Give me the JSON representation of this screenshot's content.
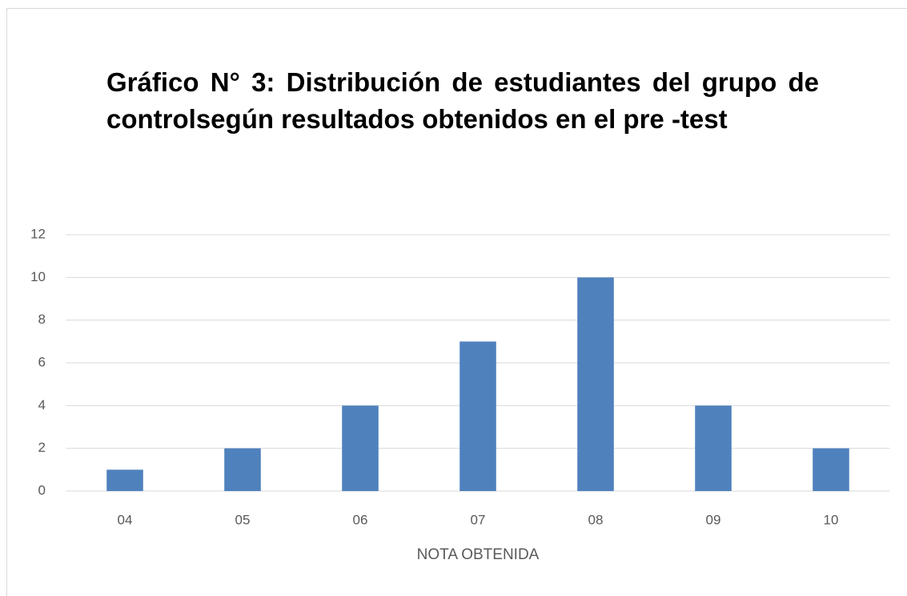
{
  "chart_data": {
    "type": "bar",
    "title": "Gráfico N° 3: Distribución de estudiantes del grupo de controlsegún resultados obtenidos en el pre -test",
    "x_label": "NOTA OBTENIDA",
    "categories": [
      "04",
      "05",
      "06",
      "07",
      "08",
      "09",
      "10"
    ],
    "values": [
      1,
      2,
      4,
      7,
      10,
      4,
      2
    ],
    "color": "#4f81bd",
    "ylim": [
      0,
      12
    ],
    "yticks": [
      0,
      2,
      4,
      6,
      8,
      10,
      12
    ],
    "grid": true
  }
}
